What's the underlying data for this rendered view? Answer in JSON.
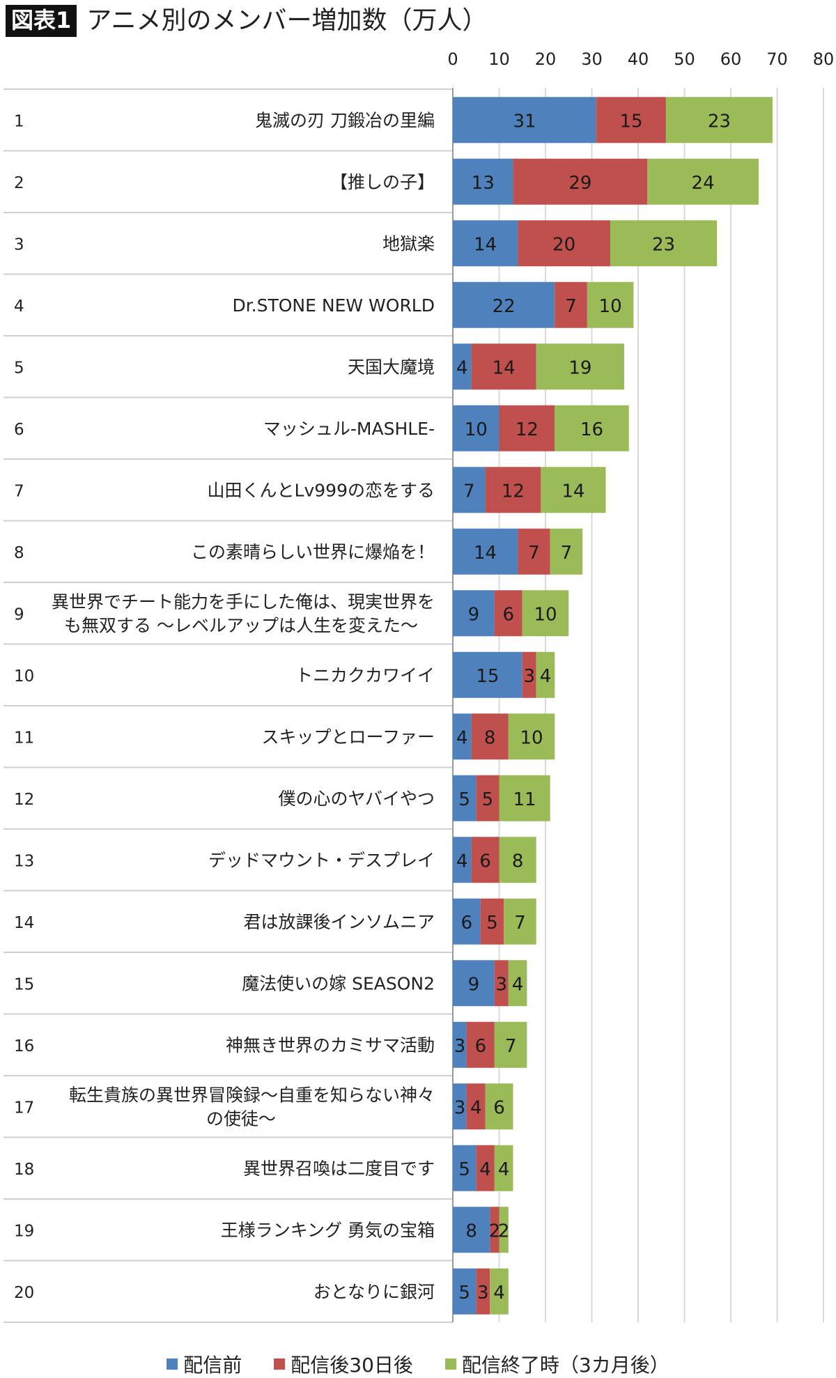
{
  "header": {
    "badge": "図表1",
    "title": "アニメ別のメンバー増加数（万人）"
  },
  "colors": {
    "series": [
      "#4f81bd",
      "#c0504d",
      "#9bbb59"
    ],
    "grid": "#d9d9d9",
    "divider": "#d0d0d0"
  },
  "chart_data": {
    "type": "bar",
    "orientation": "horizontal",
    "stacked": true,
    "title": "アニメ別のメンバー増加数（万人）",
    "xlim": [
      0,
      80
    ],
    "xticks": [
      "0",
      "10",
      "20",
      "30",
      "40",
      "50",
      "60",
      "70",
      "80"
    ],
    "grid": true,
    "legend_position": "bottom",
    "ranks": [
      "1",
      "2",
      "3",
      "4",
      "5",
      "6",
      "7",
      "8",
      "9",
      "10",
      "11",
      "12",
      "13",
      "14",
      "15",
      "16",
      "17",
      "18",
      "19",
      "20"
    ],
    "categories": [
      [
        "鬼滅の刃 刀鍛冶の里編"
      ],
      [
        "【推しの子】"
      ],
      [
        "地獄楽"
      ],
      [
        "Dr.STONE NEW WORLD"
      ],
      [
        "天国大魔境"
      ],
      [
        "マッシュル-MASHLE-"
      ],
      [
        "山田くんとLv999の恋をする"
      ],
      [
        "この素晴らしい世界に爆焔を！"
      ],
      [
        "異世界でチート能力を手にした俺は、現実世界を",
        "も無双する ～レベルアップは人生を変えた～"
      ],
      [
        "トニカクカワイイ"
      ],
      [
        "スキップとローファー"
      ],
      [
        "僕の心のヤバイやつ"
      ],
      [
        "デッドマウント・デスプレイ"
      ],
      [
        "君は放課後インソムニア"
      ],
      [
        "魔法使いの嫁 SEASON2"
      ],
      [
        "神無き世界のカミサマ活動"
      ],
      [
        "転生貴族の異世界冒険録～自重を知らない神々",
        "の使徒～"
      ],
      [
        "異世界召喚は二度目です"
      ],
      [
        "王様ランキング 勇気の宝箱"
      ],
      [
        "おとなりに銀河"
      ]
    ],
    "series": [
      {
        "name": "配信前",
        "values": [
          31,
          13,
          14,
          22,
          4,
          10,
          7,
          14,
          9,
          15,
          4,
          5,
          4,
          6,
          9,
          3,
          3,
          5,
          8,
          5
        ]
      },
      {
        "name": "配信後30日後",
        "values": [
          15,
          29,
          20,
          7,
          14,
          12,
          12,
          7,
          6,
          3,
          8,
          5,
          6,
          5,
          3,
          6,
          4,
          4,
          2,
          3
        ]
      },
      {
        "name": "配信終了時（3カ月後）",
        "values": [
          23,
          24,
          23,
          10,
          19,
          16,
          14,
          7,
          10,
          4,
          10,
          11,
          8,
          7,
          4,
          7,
          6,
          4,
          2,
          4
        ]
      }
    ]
  }
}
